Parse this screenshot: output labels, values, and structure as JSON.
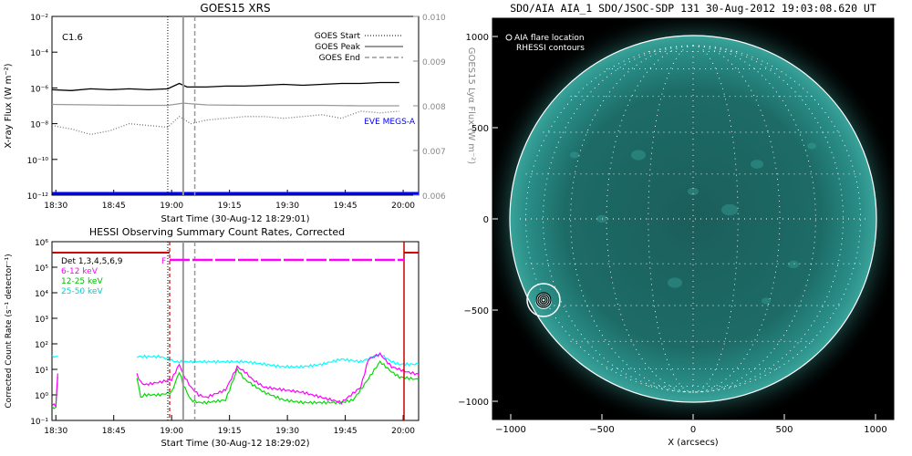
{
  "chart_data": [
    {
      "type": "line",
      "title": "GOES15 XRS",
      "xlabel": "Start Time (30-Aug-12 18:29:01)",
      "ylabel": "X-ray Flux (W m⁻²)",
      "ylabel_right": "GOES15 Lyα Flux (W m⁻²)",
      "x_ticks": [
        "18:30",
        "18:45",
        "19:00",
        "19:15",
        "19:30",
        "19:45",
        "20:00"
      ],
      "y_ticks": [
        "10⁻²",
        "10⁻⁴",
        "10⁻⁶",
        "10⁻⁸",
        "10⁻¹⁰",
        "10⁻¹²"
      ],
      "y_log_range": [
        -12,
        -2
      ],
      "y_right_ticks": [
        "0.010",
        "0.009",
        "0.008",
        "0.007",
        "0.006"
      ],
      "y_right_range": [
        0.006,
        0.01
      ],
      "x_range_min": [
        0,
        95
      ],
      "class_label": "C1.6",
      "legend": [
        "GOES Start",
        "GOES Peak",
        "GOES End"
      ],
      "eve_label": "EVE MEGS-A",
      "markers_min": {
        "start": 30,
        "peak": 34,
        "end": 37
      },
      "series": [
        {
          "name": "long",
          "color": "#000000",
          "x": [
            0,
            5,
            10,
            15,
            20,
            25,
            30,
            33,
            35,
            40,
            45,
            50,
            55,
            60,
            65,
            70,
            75,
            80,
            85,
            90
          ],
          "logy": [
            -6.1,
            -6.15,
            -6.05,
            -6.1,
            -6.05,
            -6.1,
            -6.05,
            -5.75,
            -5.95,
            -5.95,
            -5.9,
            -5.9,
            -5.85,
            -5.8,
            -5.85,
            -5.8,
            -5.75,
            -5.75,
            -5.7,
            -5.7
          ]
        },
        {
          "name": "short",
          "color": "#777777",
          "dash": "1,2",
          "x": [
            0,
            5,
            10,
            15,
            20,
            25,
            30,
            33,
            36,
            40,
            45,
            50,
            55,
            60,
            65,
            70,
            75,
            80,
            85,
            90
          ],
          "logy": [
            -8.1,
            -8.3,
            -8.6,
            -8.4,
            -8.0,
            -8.1,
            -8.2,
            -7.6,
            -8.0,
            -7.8,
            -7.7,
            -7.6,
            -7.6,
            -7.7,
            -7.6,
            -7.5,
            -7.7,
            -7.3,
            -7.4,
            -7.3
          ]
        },
        {
          "name": "lyman-alpha",
          "color": "#999999",
          "x": [
            0,
            10,
            20,
            30,
            34,
            40,
            50,
            60,
            70,
            80,
            90
          ],
          "y": [
            0.00803,
            0.00802,
            0.00801,
            0.00801,
            0.00806,
            0.00802,
            0.00801,
            0.00801,
            0.00801,
            0.008,
            0.008
          ]
        },
        {
          "name": "EVE MEGS-A",
          "color": "#0000ff",
          "x": [
            0,
            95
          ],
          "logy": [
            -11.9,
            -11.9
          ]
        }
      ]
    },
    {
      "type": "line",
      "title": "HESSI Observing Summary Count Rates, Corrected",
      "xlabel": "Start Time (30-Aug-12 18:29:02)",
      "ylabel": "Corrected Count Rate (s⁻¹ detector⁻¹)",
      "x_ticks": [
        "18:30",
        "18:45",
        "19:00",
        "19:15",
        "19:30",
        "19:45",
        "20:00"
      ],
      "y_ticks": [
        "10⁶",
        "10⁵",
        "10⁴",
        "10³",
        "10²",
        "10¹",
        "10⁰",
        "10⁻¹"
      ],
      "y_log_range": [
        -1,
        6
      ],
      "x_range_min": [
        0,
        95
      ],
      "legend": [
        {
          "label": "Det 1,3,4,5,6,9",
          "color": "#000000"
        },
        {
          "label": "6-12 keV",
          "color": "#ff00ff"
        },
        {
          "label": "12-25 keV",
          "color": "#00dd00"
        },
        {
          "label": "25-50 keV",
          "color": "#00ffff"
        }
      ],
      "flag_label": "F",
      "markers_min": {
        "start": 30,
        "peak": 34,
        "end": 37
      },
      "series": [
        {
          "name": "6-12 keV",
          "color": "#ff00ff",
          "x": [
            0,
            1,
            1.5,
            22,
            23,
            24,
            28,
            31,
            33,
            34,
            36,
            38,
            40,
            45,
            48,
            50,
            52,
            55,
            60,
            65,
            70,
            75,
            80,
            82,
            85,
            88,
            90,
            92,
            95
          ],
          "logy": [
            -0.4,
            -0.4,
            0.8,
            0.8,
            0.5,
            0.4,
            0.5,
            0.6,
            1.2,
            0.8,
            0.3,
            0.0,
            -0.1,
            0.2,
            1.1,
            0.9,
            0.6,
            0.3,
            0.2,
            0.1,
            -0.1,
            -0.3,
            0.3,
            1.4,
            1.6,
            1.1,
            1.0,
            0.9,
            0.8
          ]
        },
        {
          "name": "12-25 keV",
          "color": "#00dd00",
          "x": [
            0,
            1,
            1.5,
            22,
            23,
            24,
            28,
            31,
            33,
            34,
            36,
            38,
            40,
            45,
            48,
            50,
            55,
            60,
            65,
            70,
            75,
            78,
            80,
            85,
            88,
            90,
            95
          ],
          "logy": [
            -0.5,
            -0.5,
            0.7,
            0.7,
            -0.1,
            0.0,
            0.0,
            0.1,
            0.9,
            0.4,
            -0.2,
            -0.3,
            -0.3,
            -0.2,
            1.0,
            0.6,
            0.1,
            -0.2,
            -0.3,
            -0.3,
            -0.3,
            -0.2,
            0.2,
            1.3,
            0.9,
            0.7,
            0.6
          ]
        },
        {
          "name": "25-50 keV",
          "color": "#00ffff",
          "x": [
            0,
            1,
            1.5,
            22,
            23,
            28,
            32,
            36,
            40,
            45,
            50,
            55,
            60,
            65,
            70,
            75,
            80,
            85,
            88,
            90,
            95
          ],
          "logy": [
            1.5,
            1.5,
            1.5,
            1.5,
            1.5,
            1.5,
            1.3,
            1.3,
            1.3,
            1.3,
            1.3,
            1.2,
            1.1,
            1.1,
            1.2,
            1.4,
            1.3,
            1.6,
            1.3,
            1.2,
            1.2
          ]
        }
      ]
    },
    {
      "type": "image",
      "title": "SDO/AIA AIA_1 SDO/JSOC-SDP 131 30-Aug-2012 19:03:08.620 UT",
      "xlabel": "X (arcsecs)",
      "x_ticks": [
        "−1000",
        "−500",
        "0",
        "500",
        "1000"
      ],
      "y_ticks": [
        "1000",
        "500",
        "0",
        "−500",
        "−1000"
      ],
      "x_range": [
        -1100,
        1100
      ],
      "y_range": [
        -1100,
        1100
      ],
      "legend": [
        "AIA flare location",
        "RHESSI contours"
      ],
      "flare_location_arcsec": [
        -820,
        -450
      ],
      "solar_radius_arcsec": 950,
      "disk_color": "#1f7d78"
    }
  ]
}
